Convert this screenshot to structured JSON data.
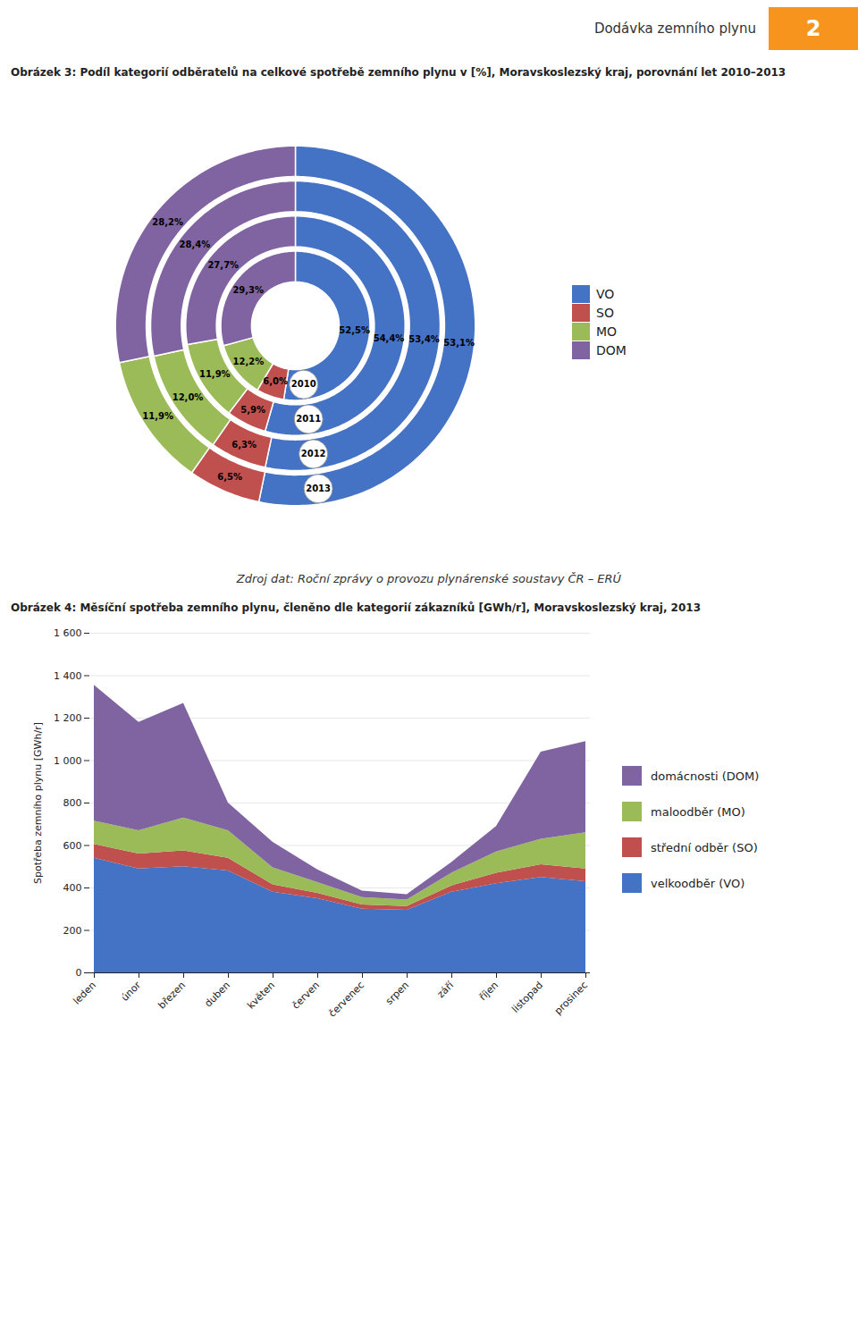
{
  "header": "Dodávka zemního plynu",
  "page_number": "2",
  "chart_data": [
    {
      "type": "donut",
      "title": "Obrázek 3: Podíl kategorií odběratelů na celkové spotřebě zemního plynu v [%], Moravskoslezský kraj, porovnání let 2010–2013",
      "source": "Zdroj dat: Roční zprávy o provozu plynárenské soustavy ČR – ERÚ",
      "categories": [
        "VO",
        "SO",
        "MO",
        "DOM"
      ],
      "colors": [
        "#4472C4",
        "#C0504D",
        "#9BBB59",
        "#8064A2"
      ],
      "series": [
        {
          "name": "2010",
          "values": [
            52.5,
            6.0,
            12.2,
            29.3
          ],
          "value_labels": [
            "52,5%",
            "6,0%",
            "12,2%",
            "29,3%"
          ]
        },
        {
          "name": "2011",
          "values": [
            54.4,
            5.9,
            11.9,
            27.7
          ],
          "value_labels": [
            "54,4%",
            "5,9%",
            "11,9%",
            "27,7%"
          ]
        },
        {
          "name": "2012",
          "values": [
            53.4,
            6.3,
            12.0,
            28.4
          ],
          "value_labels": [
            "53,4%",
            "6,3%",
            "12,0%",
            "28,4%"
          ]
        },
        {
          "name": "2013",
          "values": [
            53.1,
            6.5,
            11.9,
            28.2
          ],
          "value_labels": [
            "53,1%",
            "6,5%",
            "11,9%",
            "28,2%"
          ]
        }
      ],
      "data_labels": true,
      "legend": "right"
    },
    {
      "type": "area",
      "title": "Obrázek 4: Měsíční spotřeba zemního plynu, členěno dle kategorií zákazníků [GWh/r], Moravskoslezský kraj, 2013",
      "categories": [
        "leden",
        "únor",
        "březen",
        "duben",
        "květen",
        "červen",
        "červenec",
        "srpen",
        "září",
        "říjen",
        "listopad",
        "prosinec"
      ],
      "series": [
        {
          "name": "velkoodběr (VO)",
          "color": "#4472C4",
          "values": [
            540,
            490,
            500,
            480,
            380,
            350,
            300,
            295,
            380,
            420,
            450,
            430
          ]
        },
        {
          "name": "střední odběr (SO)",
          "color": "#C0504D",
          "values": [
            65,
            70,
            75,
            60,
            35,
            25,
            20,
            18,
            30,
            50,
            60,
            60
          ]
        },
        {
          "name": "maloodběr (MO)",
          "color": "#9BBB59",
          "values": [
            110,
            110,
            155,
            130,
            80,
            50,
            35,
            30,
            60,
            100,
            120,
            170
          ]
        },
        {
          "name": "domácnosti (DOM)",
          "color": "#8064A2",
          "values": [
            640,
            510,
            540,
            130,
            120,
            60,
            30,
            25,
            50,
            120,
            410,
            430
          ]
        }
      ],
      "stacked": true,
      "ylabel": "Spotřeba zemního plynu [GWh/r]",
      "ylim": [
        0,
        1600
      ],
      "yticks": [
        0,
        200,
        400,
        600,
        800,
        {
          "value": 1000,
          "label": "1 000"
        },
        {
          "value": 1200,
          "label": "1 200"
        },
        {
          "value": 1400,
          "label": "1 400"
        },
        {
          "value": 1600,
          "label": "1 600"
        }
      ],
      "grid": true,
      "legend": "right"
    }
  ]
}
